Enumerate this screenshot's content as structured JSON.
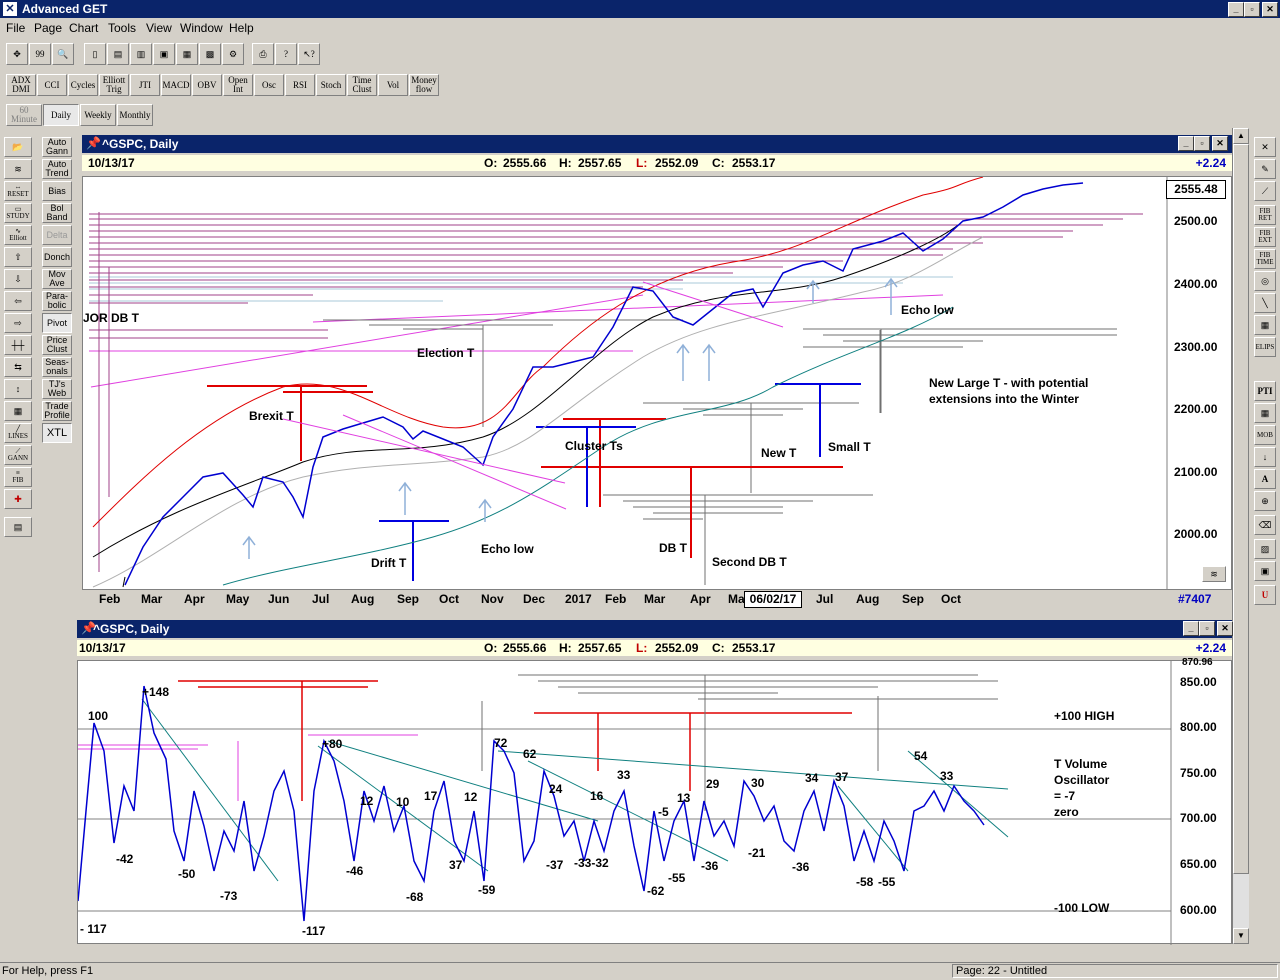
{
  "app": {
    "title": "Advanced GET"
  },
  "menu": [
    "File",
    "Page",
    "Chart",
    "Tools",
    "View",
    "Window",
    "Help"
  ],
  "indicator_toolbar": [
    "ADX DMI",
    "CCI",
    "Cycles",
    "Elliott Trig",
    "JTI",
    "MACD",
    "OBV",
    "Open Int",
    "Osc",
    "RSI",
    "Stoch",
    "Time Clust",
    "Vol",
    "Money flow"
  ],
  "period_buttons": {
    "minute": "60 Minute",
    "daily": "Daily",
    "weekly": "Weekly",
    "monthly": "Monthly"
  },
  "left_tools": [
    "Auto Gann",
    "Auto Trend",
    "Bias",
    "Bol Band",
    "Delta",
    "Donch",
    "Mov Ave",
    "Para-bolic",
    "Pivot",
    "Price Clust",
    "Seas-onals",
    "TJ's Web",
    "Trade Profile",
    "XTL"
  ],
  "left_icons": {
    "reset": "RESET",
    "study": "STUDY",
    "elliott": "Elliott",
    "lines": "LINES",
    "gann": "GANN",
    "fib": "FIB"
  },
  "right_tools": [
    "FIB RET",
    "FIB EXT",
    "FIB TIME",
    "ELIPS",
    "PTI",
    "MOB"
  ],
  "price_window": {
    "title": "^GSPC, Daily",
    "date": "10/13/17",
    "open_label": "O:",
    "open": "2555.66",
    "high_label": "H:",
    "high": "2557.65",
    "low_label": "L:",
    "low": "2552.09",
    "close_label": "C:",
    "close": "2553.17",
    "change": "+2.24",
    "last_price": "2555.48",
    "bar_count": "#7407",
    "cursor_date": "06/02/17",
    "price_ticks": [
      "2500.00",
      "2400.00",
      "2300.00",
      "2200.00",
      "2100.00",
      "2000.00"
    ],
    "months": [
      "Feb",
      "Mar",
      "Apr",
      "May",
      "Jun",
      "Jul",
      "Aug",
      "Sep",
      "Oct",
      "Nov",
      "Dec",
      "2017",
      "Feb",
      "Mar",
      "Apr",
      "Ma",
      "Jul",
      "Aug",
      "Sep",
      "Oct"
    ],
    "annotations": {
      "jor": "JOR DB T",
      "election": "Election T",
      "brexit": "Brexit T",
      "cluster": "Cluster Ts",
      "newt": "New T",
      "smallt": "Small T",
      "echo1": "Echo low",
      "echo2": "Echo low",
      "drift": "Drift T",
      "dbt": "DB T",
      "seconddb": "Second DB T",
      "large": "New Large T - with potential",
      "large2": "extensions into the Winter"
    }
  },
  "osc_window": {
    "title": "^GSPC, Daily",
    "date": "10/13/17",
    "open_label": "O:",
    "open": "2555.66",
    "high_label": "H:",
    "high": "2557.65",
    "low_label": "L:",
    "low": "2552.09",
    "close_label": "C:",
    "close": "2553.17",
    "change": "+2.24",
    "ticks": [
      "870.96",
      "850.00",
      "800.00",
      "750.00",
      "700.00",
      "650.00",
      "600.00"
    ],
    "labels": {
      "high": "+100 HIGH",
      "low": "-100 LOW",
      "t1": "T Volume",
      "t2": "Oscillator",
      "t3": "= -7",
      "t4": "zero"
    },
    "values": [
      "100",
      "+148",
      "-42",
      "-50",
      "-73",
      "-117",
      "+80",
      "-46",
      "12",
      "10",
      "-68",
      "17",
      "37",
      "12",
      "-59",
      "72",
      "62",
      "-37",
      "24",
      "-33-32",
      "16",
      "33",
      "-62",
      "-55",
      "-5",
      "13",
      "-36",
      "29",
      "30",
      "-21",
      "34",
      "-36",
      "37",
      "-58",
      "-55",
      "54",
      "33",
      "- 117"
    ]
  },
  "status": {
    "help": "For Help, press F1",
    "page": "Page: 22 - Untitled"
  }
}
